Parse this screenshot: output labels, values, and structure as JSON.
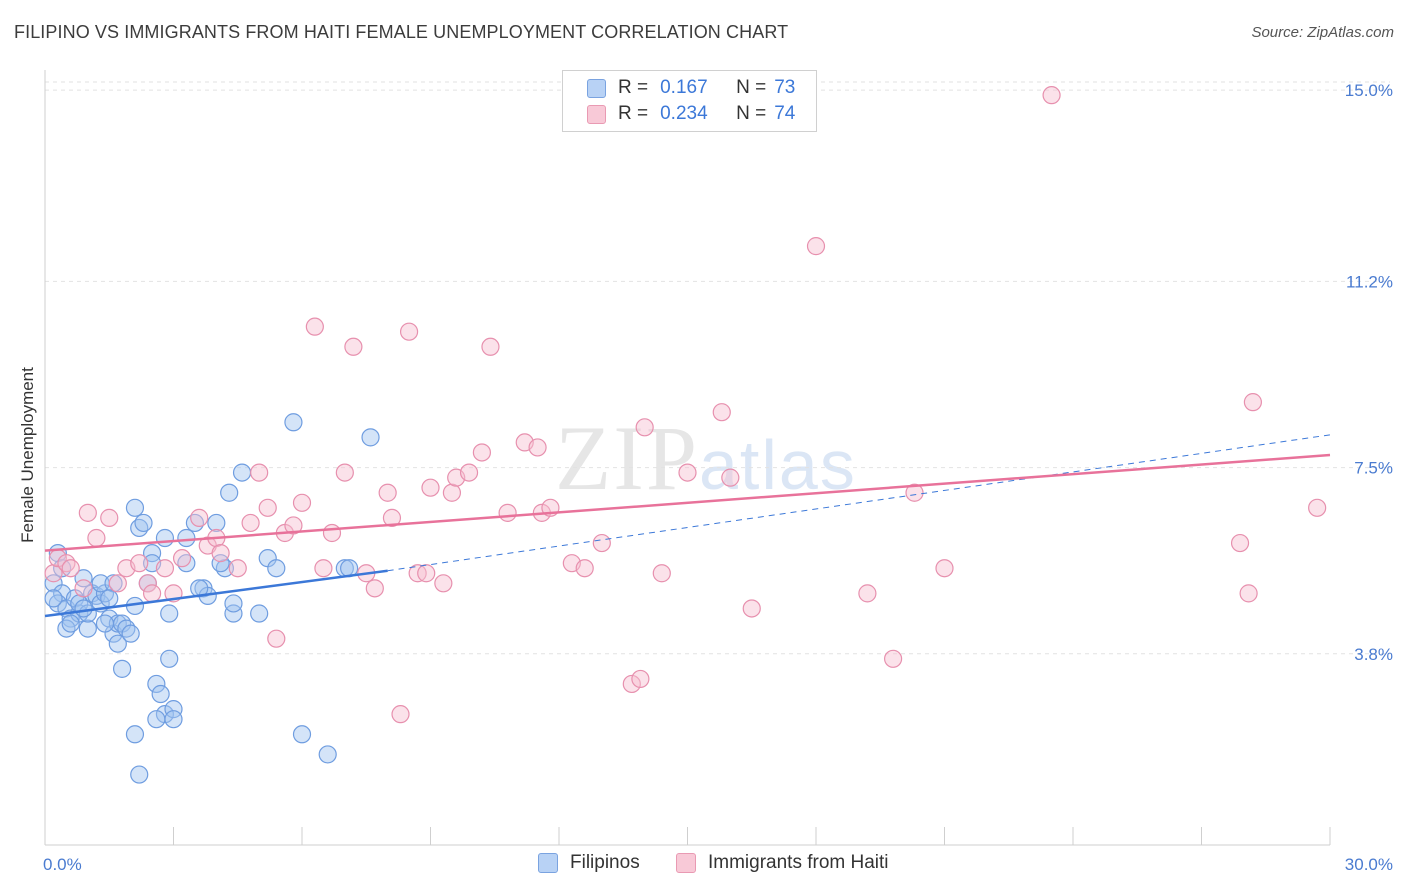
{
  "title": "FILIPINO VS IMMIGRANTS FROM HAITI FEMALE UNEMPLOYMENT CORRELATION CHART",
  "source": "Source: ZipAtlas.com",
  "watermark": {
    "main": "ZIP",
    "sub": "atlas"
  },
  "legend": {
    "rows": [
      {
        "r_label": "R =",
        "r_value": "0.167",
        "n_label": "N =",
        "n_value": "73"
      },
      {
        "r_label": "R =",
        "r_value": "0.234",
        "n_label": "N =",
        "n_value": "74"
      }
    ]
  },
  "bottom_legend": {
    "series1": "Filipinos",
    "series2": "Immigrants from Haiti"
  },
  "colors": {
    "blue": "#3c78d8",
    "pink": "#e8729a",
    "blue_fill": "#b8d2f5",
    "pink_fill": "#f8c9d7"
  },
  "chart_data": {
    "type": "scatter",
    "title": "FILIPINO VS IMMIGRANTS FROM HAITI FEMALE UNEMPLOYMENT CORRELATION CHART",
    "xlabel": "",
    "ylabel": "Female Unemployment",
    "xlim": [
      0,
      30
    ],
    "ylim": [
      0,
      15.4
    ],
    "x_tick_labels": [
      "0.0%",
      "30.0%"
    ],
    "y_ticks": [
      3.8,
      7.5,
      11.2,
      15.0
    ],
    "y_tick_labels": [
      "3.8%",
      "7.5%",
      "11.2%",
      "15.0%"
    ],
    "x_minor_ticks": [
      3,
      6,
      9,
      12,
      15,
      18,
      21,
      24,
      27,
      30
    ],
    "series": [
      {
        "name": "Filipinos",
        "R": 0.167,
        "N": 73,
        "trend": {
          "x0": 0,
          "y0": 4.55,
          "x1": 8,
          "y1": 5.45,
          "dash_to_x": 30,
          "dash_to_y": 8.15
        },
        "points": [
          [
            0.2,
            5.2
          ],
          [
            0.3,
            5.8
          ],
          [
            0.4,
            5.0
          ],
          [
            0.3,
            4.8
          ],
          [
            0.5,
            4.7
          ],
          [
            0.6,
            4.5
          ],
          [
            0.5,
            4.3
          ],
          [
            0.7,
            4.9
          ],
          [
            0.8,
            4.6
          ],
          [
            0.9,
            5.3
          ],
          [
            0.8,
            4.8
          ],
          [
            1.0,
            4.3
          ],
          [
            1.1,
            5.0
          ],
          [
            1.2,
            4.95
          ],
          [
            1.3,
            4.8
          ],
          [
            1.4,
            5.0
          ],
          [
            1.3,
            5.2
          ],
          [
            1.5,
            4.5
          ],
          [
            1.6,
            4.2
          ],
          [
            1.7,
            4.4
          ],
          [
            1.6,
            5.2
          ],
          [
            1.7,
            4.0
          ],
          [
            1.8,
            4.4
          ],
          [
            1.9,
            4.3
          ],
          [
            2.0,
            4.2
          ],
          [
            2.1,
            4.75
          ],
          [
            2.2,
            6.3
          ],
          [
            2.3,
            6.4
          ],
          [
            2.1,
            6.7
          ],
          [
            1.8,
            3.5
          ],
          [
            2.5,
            5.8
          ],
          [
            2.5,
            5.6
          ],
          [
            2.8,
            6.1
          ],
          [
            2.6,
            3.2
          ],
          [
            2.7,
            3.0
          ],
          [
            2.8,
            2.6
          ],
          [
            2.6,
            2.5
          ],
          [
            3.0,
            2.7
          ],
          [
            3.0,
            2.5
          ],
          [
            2.9,
            3.7
          ],
          [
            2.9,
            4.6
          ],
          [
            3.3,
            6.1
          ],
          [
            3.5,
            6.4
          ],
          [
            3.3,
            5.6
          ],
          [
            3.7,
            5.1
          ],
          [
            3.8,
            4.95
          ],
          [
            4.0,
            6.4
          ],
          [
            4.2,
            5.5
          ],
          [
            4.3,
            7.0
          ],
          [
            4.4,
            4.6
          ],
          [
            4.4,
            4.8
          ],
          [
            4.6,
            7.4
          ],
          [
            5.0,
            4.6
          ],
          [
            5.2,
            5.7
          ],
          [
            5.4,
            5.5
          ],
          [
            5.8,
            8.4
          ],
          [
            6.0,
            2.2
          ],
          [
            6.6,
            1.8
          ],
          [
            7.0,
            5.5
          ],
          [
            7.1,
            5.5
          ],
          [
            7.6,
            8.1
          ],
          [
            2.4,
            5.2
          ],
          [
            0.4,
            5.5
          ],
          [
            1.0,
            4.6
          ],
          [
            0.2,
            4.9
          ],
          [
            1.4,
            4.4
          ],
          [
            2.2,
            1.4
          ],
          [
            2.1,
            2.2
          ],
          [
            1.5,
            4.9
          ],
          [
            0.9,
            4.7
          ],
          [
            3.6,
            5.1
          ],
          [
            4.1,
            5.6
          ],
          [
            0.6,
            4.4
          ]
        ]
      },
      {
        "name": "Immigrants from Haiti",
        "R": 0.234,
        "N": 74,
        "trend": {
          "x0": 0,
          "y0": 5.85,
          "x1": 30,
          "y1": 7.75
        },
        "points": [
          [
            0.2,
            5.4
          ],
          [
            0.3,
            5.7
          ],
          [
            0.5,
            5.6
          ],
          [
            0.6,
            5.5
          ],
          [
            0.9,
            5.1
          ],
          [
            1.0,
            6.6
          ],
          [
            1.2,
            6.1
          ],
          [
            1.5,
            6.5
          ],
          [
            1.7,
            5.2
          ],
          [
            1.9,
            5.5
          ],
          [
            2.2,
            5.6
          ],
          [
            2.4,
            5.2
          ],
          [
            2.5,
            5.0
          ],
          [
            2.8,
            5.5
          ],
          [
            3.0,
            5.0
          ],
          [
            3.2,
            5.7
          ],
          [
            3.6,
            6.5
          ],
          [
            3.8,
            5.95
          ],
          [
            4.0,
            6.1
          ],
          [
            4.1,
            5.8
          ],
          [
            4.5,
            5.5
          ],
          [
            4.8,
            6.4
          ],
          [
            5.0,
            7.4
          ],
          [
            5.2,
            6.7
          ],
          [
            5.4,
            4.1
          ],
          [
            5.6,
            6.2
          ],
          [
            5.8,
            6.35
          ],
          [
            6.0,
            6.8
          ],
          [
            6.3,
            10.3
          ],
          [
            6.5,
            5.5
          ],
          [
            6.7,
            6.2
          ],
          [
            7.0,
            7.4
          ],
          [
            7.2,
            9.9
          ],
          [
            7.5,
            5.4
          ],
          [
            7.7,
            5.1
          ],
          [
            8.0,
            7.0
          ],
          [
            8.1,
            6.5
          ],
          [
            8.3,
            2.6
          ],
          [
            8.5,
            10.2
          ],
          [
            8.7,
            5.4
          ],
          [
            8.9,
            5.4
          ],
          [
            9.0,
            7.1
          ],
          [
            9.3,
            5.2
          ],
          [
            9.5,
            7.0
          ],
          [
            9.6,
            7.3
          ],
          [
            9.9,
            7.4
          ],
          [
            10.2,
            7.8
          ],
          [
            10.4,
            9.9
          ],
          [
            10.8,
            6.6
          ],
          [
            11.2,
            8.0
          ],
          [
            11.5,
            7.9
          ],
          [
            11.6,
            6.6
          ],
          [
            11.8,
            6.7
          ],
          [
            12.3,
            5.6
          ],
          [
            12.6,
            5.5
          ],
          [
            13.0,
            6.0
          ],
          [
            13.7,
            3.2
          ],
          [
            13.9,
            3.3
          ],
          [
            14.0,
            8.3
          ],
          [
            14.4,
            5.4
          ],
          [
            15.0,
            7.4
          ],
          [
            15.8,
            8.6
          ],
          [
            16.0,
            7.3
          ],
          [
            16.5,
            4.7
          ],
          [
            18.0,
            11.9
          ],
          [
            19.2,
            5.0
          ],
          [
            19.8,
            3.7
          ],
          [
            20.3,
            7.0
          ],
          [
            21.0,
            5.5
          ],
          [
            23.5,
            14.9
          ],
          [
            27.9,
            6.0
          ],
          [
            28.1,
            5.0
          ],
          [
            28.2,
            8.8
          ],
          [
            29.7,
            6.7
          ]
        ]
      }
    ]
  }
}
